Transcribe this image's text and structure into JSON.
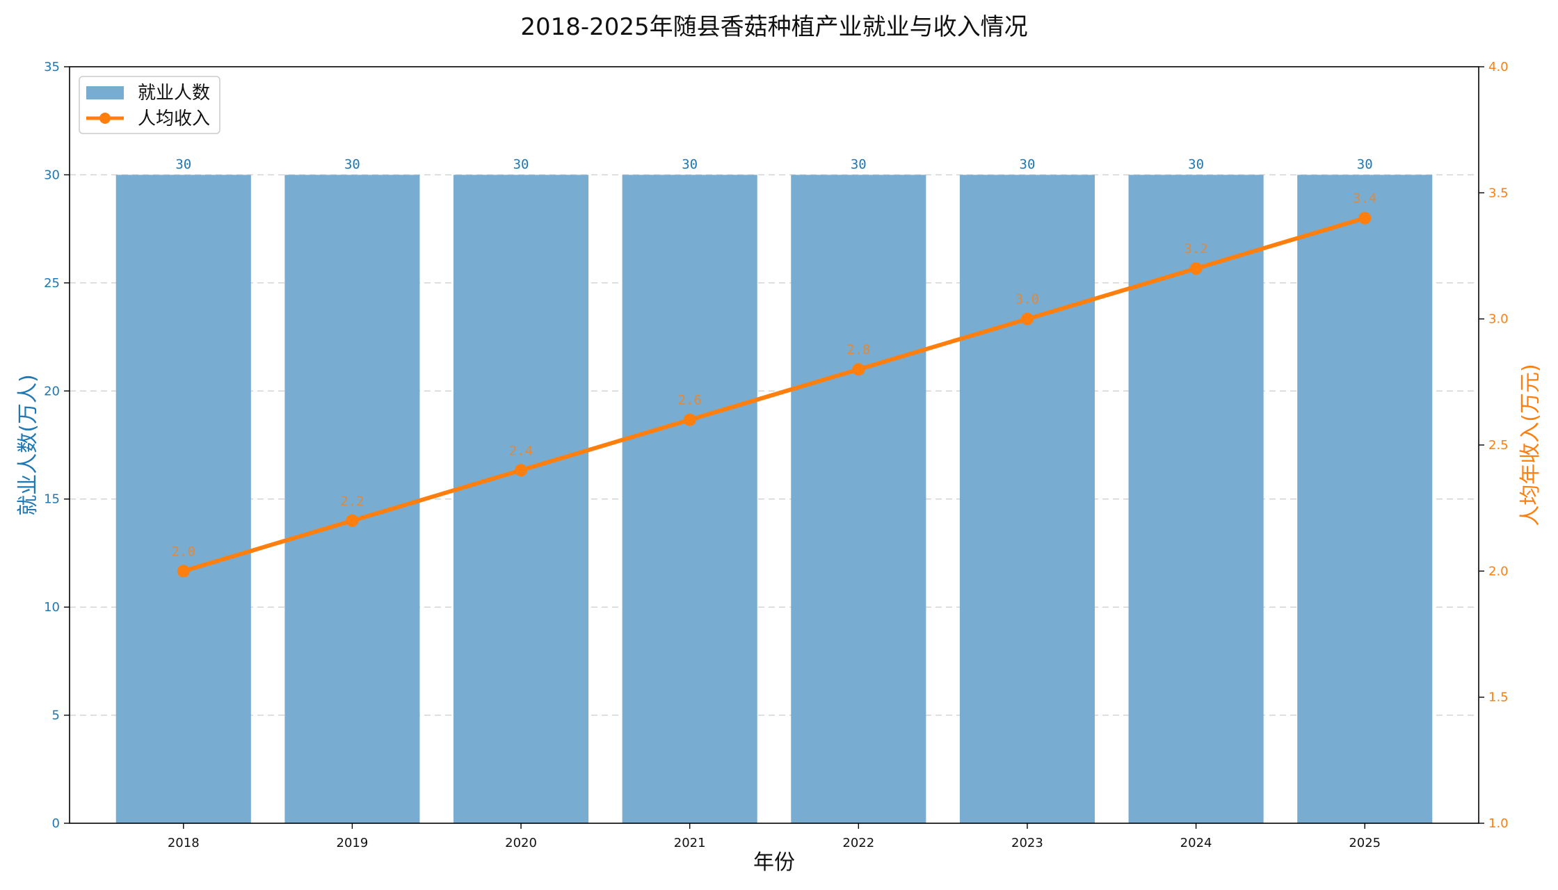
{
  "colors": {
    "bar": "#78acd0",
    "line": "#ff7f0e",
    "left_axis": "#1f77b4",
    "right_axis": "#ff7f0e",
    "grid": "#d0d0d0",
    "text": "#111111"
  },
  "chart_data": {
    "type": "bar",
    "title": "2018-2025年随县香菇种植产业就业与收入情况",
    "xlabel": "年份",
    "ylabel": "就业人数(万人)",
    "y2label": "人均年收入(万元)",
    "categories": [
      "2018",
      "2019",
      "2020",
      "2021",
      "2022",
      "2023",
      "2024",
      "2025"
    ],
    "ylim": [
      0,
      35
    ],
    "y2lim": [
      1.0,
      4.0
    ],
    "yticks": [
      "0",
      "5",
      "10",
      "15",
      "20",
      "25",
      "30",
      "35"
    ],
    "y2ticks": [
      "1.0",
      "1.5",
      "2.0",
      "2.5",
      "3.0",
      "3.5",
      "4.0"
    ],
    "grid": true,
    "legend_position": "top-left",
    "series": [
      {
        "name": "就业人数",
        "type": "bar",
        "axis": "left",
        "values": [
          30,
          30,
          30,
          30,
          30,
          30,
          30,
          30
        ],
        "labels": [
          "30",
          "30",
          "30",
          "30",
          "30",
          "30",
          "30",
          "30"
        ]
      },
      {
        "name": "人均收入",
        "type": "line",
        "axis": "right",
        "values": [
          2.0,
          2.2,
          2.4,
          2.6,
          2.8,
          3.0,
          3.2,
          3.4
        ],
        "labels": [
          "2.0",
          "2.2",
          "2.4",
          "2.6",
          "2.8",
          "3.0",
          "3.2",
          "3.4"
        ]
      }
    ]
  }
}
